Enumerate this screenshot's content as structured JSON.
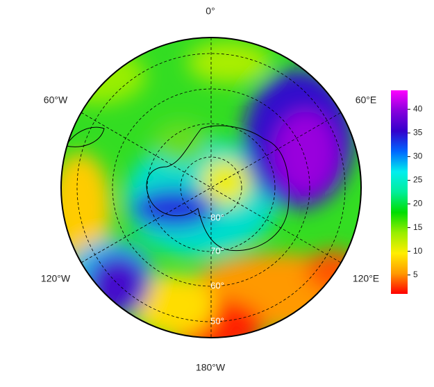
{
  "map": {
    "longitude_labels": [
      "0°",
      "60°E",
      "120°E",
      "180°W",
      "120°W",
      "60°W"
    ],
    "latitude_labels": [
      "80°",
      "70°",
      "60°",
      "50°"
    ],
    "colorbar": {
      "ylim": [
        1,
        44
      ],
      "yticks": [
        5,
        10,
        15,
        20,
        25,
        30,
        35,
        40
      ],
      "colors": [
        "#ff0000",
        "#ff9900",
        "#ffee00",
        "#99ee00",
        "#00dd00",
        "#00ee99",
        "#00eeee",
        "#0066ff",
        "#3300cc",
        "#8800dd",
        "#ff00ff"
      ]
    }
  }
}
